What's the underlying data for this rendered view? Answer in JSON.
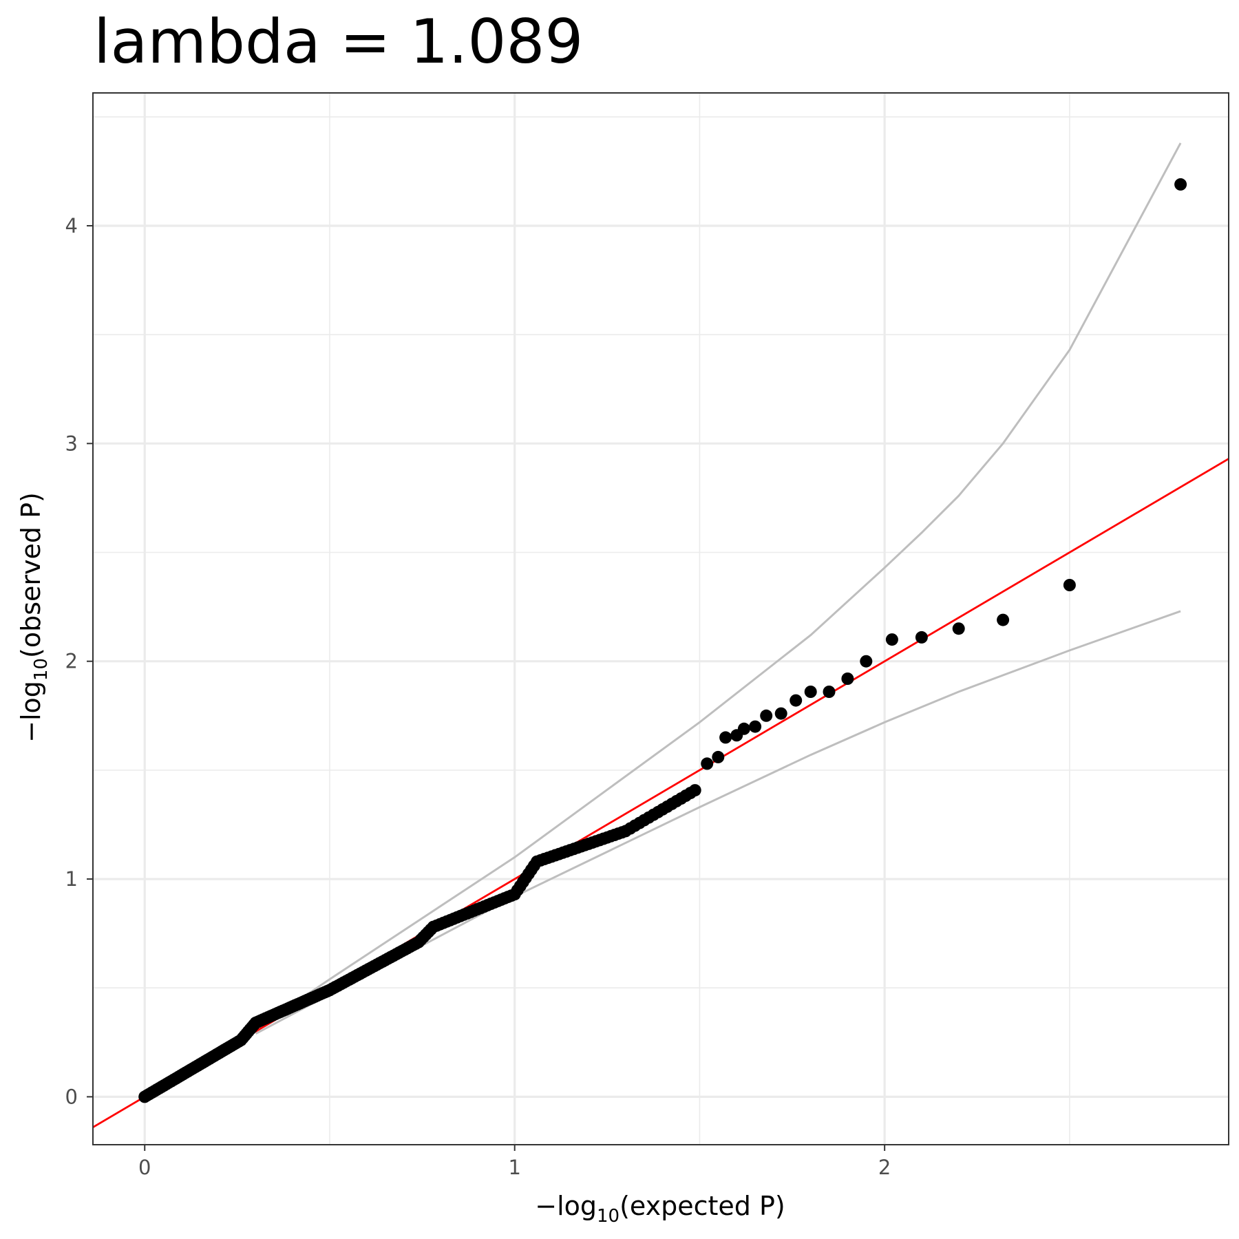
{
  "chart_data": {
    "type": "scatter",
    "title": "lambda = 1.089",
    "xlabel": {
      "prefix": "−log",
      "sub": "10",
      "suffix": "(expected P)"
    },
    "ylabel": {
      "prefix": "−log",
      "sub": "10",
      "suffix": "(observed P)"
    },
    "xlim": [
      -0.14,
      2.93
    ],
    "ylim": [
      -0.22,
      4.61
    ],
    "x_ticks": [
      0,
      1,
      2
    ],
    "x_tick_labels": [
      "0",
      "1",
      "2"
    ],
    "y_ticks": [
      0,
      1,
      2,
      3,
      4
    ],
    "y_tick_labels": [
      "0",
      "1",
      "2",
      "3",
      "4"
    ],
    "grid": true,
    "colors": {
      "points": "#000000",
      "reference_line": "#ff0000",
      "confidence_band": "#bebebe",
      "grid": "#ebebeb",
      "panel_border": "#333333"
    },
    "reference_line": {
      "slope": 1,
      "intercept": 0
    },
    "confidence_band": {
      "upper": [
        [
          0.3,
          0.31
        ],
        [
          0.5,
          0.54
        ],
        [
          1.0,
          1.1
        ],
        [
          1.5,
          1.72
        ],
        [
          1.8,
          2.12
        ],
        [
          2.0,
          2.43
        ],
        [
          2.1,
          2.59
        ],
        [
          2.2,
          2.76
        ],
        [
          2.32,
          3.0
        ],
        [
          2.5,
          3.43
        ],
        [
          2.8,
          4.38
        ]
      ],
      "lower": [
        [
          0.3,
          0.29
        ],
        [
          0.5,
          0.47
        ],
        [
          1.0,
          0.92
        ],
        [
          1.5,
          1.33
        ],
        [
          1.8,
          1.57
        ],
        [
          2.0,
          1.72
        ],
        [
          2.2,
          1.86
        ],
        [
          2.5,
          2.05
        ],
        [
          2.8,
          2.23
        ]
      ]
    },
    "segments": [
      {
        "x0": 0.0,
        "y0": 0.0,
        "x1": 0.26,
        "y1": 0.26,
        "n": 40
      },
      {
        "x0": 0.26,
        "y0": 0.26,
        "x1": 0.3,
        "y1": 0.34,
        "n": 8
      },
      {
        "x0": 0.3,
        "y0": 0.34,
        "x1": 0.5,
        "y1": 0.49,
        "n": 30
      },
      {
        "x0": 0.5,
        "y0": 0.49,
        "x1": 0.74,
        "y1": 0.71,
        "n": 32
      },
      {
        "x0": 0.74,
        "y0": 0.71,
        "x1": 0.78,
        "y1": 0.78,
        "n": 6
      },
      {
        "x0": 0.78,
        "y0": 0.78,
        "x1": 1.0,
        "y1": 0.93,
        "n": 24
      },
      {
        "x0": 1.0,
        "y0": 0.93,
        "x1": 1.06,
        "y1": 1.08,
        "n": 8
      },
      {
        "x0": 1.06,
        "y0": 1.08,
        "x1": 1.3,
        "y1": 1.22,
        "n": 24
      },
      {
        "x0": 1.3,
        "y0": 1.22,
        "x1": 1.5,
        "y1": 1.42,
        "n": 16
      }
    ],
    "points": [
      [
        1.52,
        1.53
      ],
      [
        1.55,
        1.56
      ],
      [
        1.57,
        1.65
      ],
      [
        1.6,
        1.66
      ],
      [
        1.62,
        1.69
      ],
      [
        1.65,
        1.7
      ],
      [
        1.68,
        1.75
      ],
      [
        1.72,
        1.76
      ],
      [
        1.76,
        1.82
      ],
      [
        1.8,
        1.86
      ],
      [
        1.85,
        1.86
      ],
      [
        1.9,
        1.92
      ],
      [
        1.95,
        2.0
      ],
      [
        2.02,
        2.1
      ],
      [
        2.1,
        2.11
      ],
      [
        2.2,
        2.15
      ],
      [
        2.32,
        2.19
      ],
      [
        2.5,
        2.35
      ],
      [
        2.8,
        4.19
      ]
    ]
  }
}
